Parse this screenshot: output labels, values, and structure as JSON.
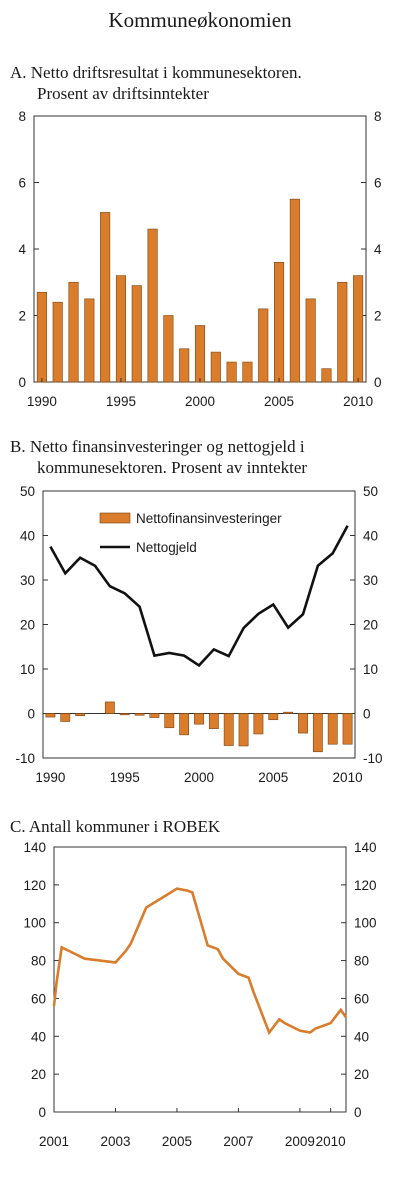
{
  "page_title": "Kommuneøkonomien",
  "panels": [
    {
      "title_line1": "A.  Netto driftsresultat i kommunesektoren.",
      "title_line2": "Prosent av driftsinntekter"
    },
    {
      "title_line1": "B.  Netto finansinvesteringer og nettogjeld i",
      "title_line2": "kommunesektoren. Prosent av inntekter"
    },
    {
      "title_line1": "C.  Antall kommuner i ROBEK",
      "title_line2": ""
    }
  ],
  "colors": {
    "orange": "#D97C2B",
    "black": "#111111",
    "axis": "#333333"
  },
  "chart_data": [
    {
      "type": "bar",
      "title": "Netto driftsresultat i kommunesektoren. Prosent av driftsinntekter",
      "categories": [
        1990,
        1991,
        1992,
        1993,
        1994,
        1995,
        1996,
        1997,
        1998,
        1999,
        2000,
        2001,
        2002,
        2003,
        2004,
        2005,
        2006,
        2007,
        2008,
        2009,
        2010
      ],
      "values": [
        2.7,
        2.4,
        3.0,
        2.5,
        5.1,
        3.2,
        2.9,
        4.6,
        2.0,
        1.0,
        1.7,
        0.9,
        0.6,
        0.6,
        2.2,
        3.6,
        5.5,
        2.5,
        0.4,
        3.0,
        3.2
      ],
      "ylim": [
        0,
        8
      ],
      "yticks": [
        0,
        2,
        4,
        6,
        8
      ],
      "xticks": [
        1990,
        1995,
        2000,
        2005,
        2010
      ],
      "grid": false,
      "y_axis_both_sides": true
    },
    {
      "type": "bar+line",
      "title": "Netto finansinvesteringer og nettogjeld i kommunesektoren. Prosent av inntekter",
      "categories": [
        1990,
        1991,
        1992,
        1993,
        1994,
        1995,
        1996,
        1997,
        1998,
        1999,
        2000,
        2001,
        2002,
        2003,
        2004,
        2005,
        2006,
        2007,
        2008,
        2009,
        2010
      ],
      "series": [
        {
          "name": "Nettofinansinvesteringer",
          "kind": "bar",
          "values": [
            -0.8,
            -1.8,
            -0.5,
            0.0,
            2.6,
            -0.3,
            -0.4,
            -0.9,
            -3.2,
            -4.8,
            -2.4,
            -3.4,
            -7.2,
            -7.3,
            -4.6,
            -1.4,
            0.3,
            -4.4,
            -8.6,
            -6.9,
            -6.9
          ]
        },
        {
          "name": "Nettogjeld",
          "kind": "line",
          "values": [
            37.5,
            31.5,
            35.0,
            33.2,
            28.6,
            27.0,
            24.0,
            13.0,
            13.6,
            13.0,
            10.8,
            14.4,
            12.9,
            19.2,
            22.4,
            24.5,
            19.3,
            22.3,
            33.2,
            36.0,
            42.2
          ]
        }
      ],
      "ylim": [
        -10,
        50
      ],
      "yticks": [
        -10,
        0,
        10,
        20,
        30,
        40,
        50
      ],
      "xticks": [
        1990,
        1995,
        2000,
        2005,
        2010
      ],
      "legend": "top-center",
      "grid": false
    },
    {
      "type": "line",
      "title": "Antall kommuner i ROBEK",
      "x": [
        2001.0,
        2001.08,
        2001.25,
        2001.5,
        2002.0,
        2002.5,
        2003.0,
        2003.33,
        2003.5,
        2004.0,
        2004.5,
        2005.0,
        2005.33,
        2005.5,
        2006.0,
        2006.33,
        2006.5,
        2007.0,
        2007.33,
        2007.5,
        2008.0,
        2008.33,
        2008.5,
        2009.0,
        2009.33,
        2009.5,
        2010.0,
        2010.33,
        2010.5
      ],
      "y": [
        56,
        68,
        87,
        85,
        81,
        80,
        79,
        85,
        89,
        108,
        113,
        118,
        117,
        116,
        88,
        86,
        81,
        73,
        71,
        63,
        42,
        49,
        47,
        43,
        42,
        44,
        47,
        54,
        50
      ],
      "ylim": [
        0,
        140
      ],
      "yticks": [
        0,
        20,
        40,
        60,
        80,
        100,
        120,
        140
      ],
      "xticks": [
        2001,
        2003,
        2005,
        2007,
        2009,
        2010
      ],
      "xtick_labels": [
        "2001",
        "2003",
        "2005",
        "2007",
        "2009",
        "2010"
      ],
      "grid": false
    }
  ]
}
